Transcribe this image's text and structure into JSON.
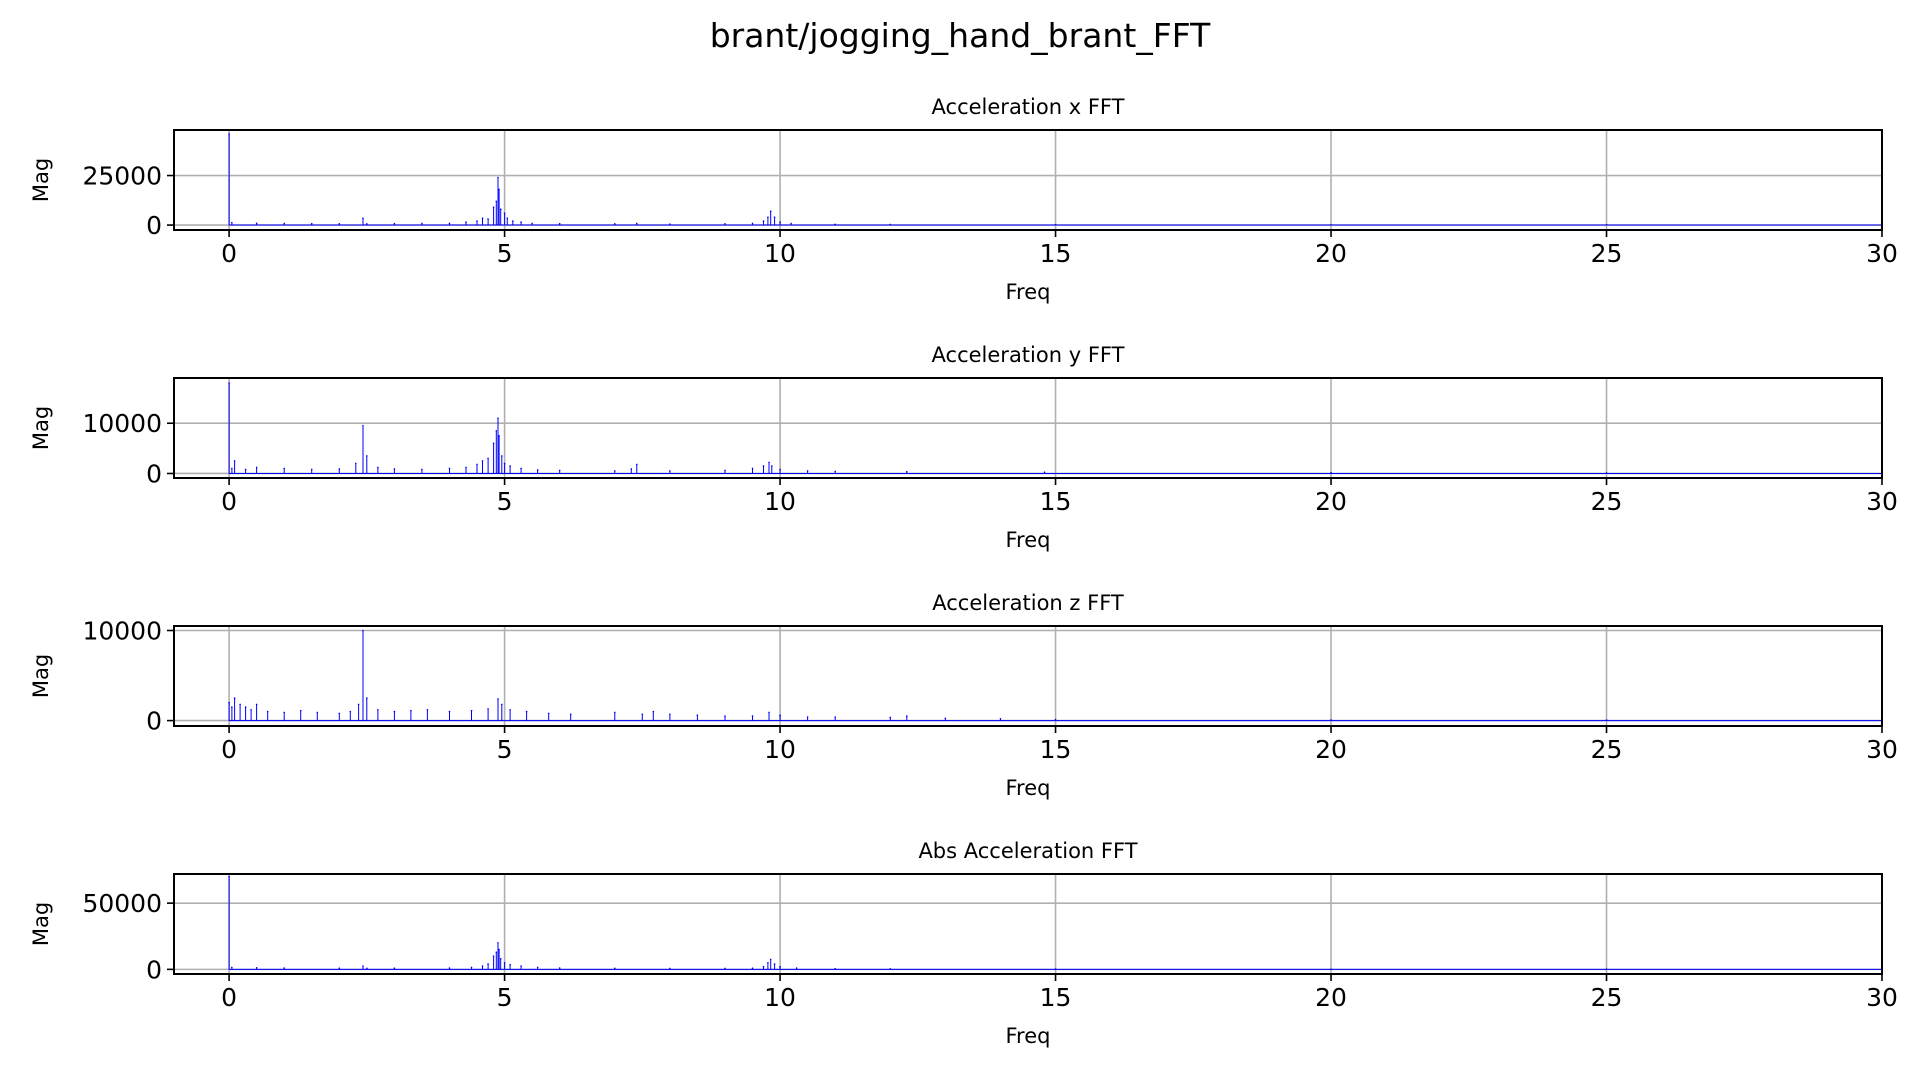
{
  "figure": {
    "title": "brant/jogging_hand_brant_FFT"
  },
  "style": {
    "line_color": "#0000ff",
    "grid_color": "#b0b0b0",
    "axis_color": "#000000",
    "background": "#ffffff"
  },
  "chart_data": [
    {
      "type": "line",
      "title": "Acceleration x FFT",
      "xlabel": "Freq",
      "ylabel": "Mag",
      "xlim": [
        -1,
        30
      ],
      "ylim": [
        -2500,
        48000
      ],
      "xticks": [
        0,
        5,
        10,
        15,
        20,
        25,
        30
      ],
      "yticks": [
        0,
        25000
      ],
      "ytick_labels": [
        "0",
        "25000"
      ],
      "grid": true,
      "series": [
        {
          "color": "#0000ff",
          "x": [
            0,
            0.05,
            0.5,
            1.0,
            1.5,
            2.0,
            2.43,
            2.5,
            3.0,
            3.5,
            4.0,
            4.3,
            4.5,
            4.6,
            4.7,
            4.8,
            4.85,
            4.88,
            4.9,
            4.93,
            5.0,
            5.05,
            5.15,
            5.3,
            5.5,
            6.0,
            7.0,
            7.4,
            8.0,
            9.0,
            9.5,
            9.7,
            9.78,
            9.83,
            9.9,
            10.0,
            10.2,
            11.0,
            12.0,
            15.0,
            20.0,
            25.0,
            30.0
          ],
          "y": [
            46000,
            1200,
            900,
            800,
            700,
            650,
            3500,
            600,
            700,
            800,
            900,
            1500,
            2000,
            3500,
            3000,
            9000,
            12000,
            24000,
            18000,
            8000,
            6000,
            3500,
            2000,
            1500,
            900,
            700,
            600,
            800,
            500,
            600,
            800,
            2000,
            4000,
            7000,
            4000,
            1500,
            800,
            400,
            300,
            200,
            150,
            120,
            100
          ]
        }
      ]
    },
    {
      "type": "line",
      "title": "Acceleration y FFT",
      "xlabel": "Freq",
      "ylabel": "Mag",
      "xlim": [
        -1,
        30
      ],
      "ylim": [
        -900,
        19000
      ],
      "xticks": [
        0,
        5,
        10,
        15,
        20,
        25,
        30
      ],
      "yticks": [
        0,
        10000
      ],
      "ytick_labels": [
        "0",
        "10000"
      ],
      "grid": true,
      "series": [
        {
          "color": "#0000ff",
          "x": [
            0,
            0.05,
            0.1,
            0.3,
            0.5,
            1.0,
            1.5,
            2.0,
            2.3,
            2.43,
            2.5,
            2.7,
            3.0,
            3.5,
            4.0,
            4.3,
            4.5,
            4.6,
            4.7,
            4.8,
            4.85,
            4.88,
            4.9,
            4.95,
            5.0,
            5.1,
            5.3,
            5.6,
            6.0,
            7.0,
            7.3,
            7.4,
            8.0,
            9.0,
            9.5,
            9.7,
            9.8,
            9.85,
            10.0,
            10.5,
            11.0,
            12.3,
            14.8,
            20.0,
            25.0,
            30.0
          ],
          "y": [
            18000,
            1000,
            2500,
            800,
            1200,
            1000,
            800,
            900,
            2000,
            9500,
            3500,
            1200,
            900,
            800,
            1000,
            1200,
            1800,
            2500,
            3000,
            6000,
            8500,
            11000,
            7500,
            3500,
            2000,
            1500,
            1000,
            700,
            600,
            500,
            900,
            1800,
            500,
            600,
            1000,
            1500,
            2200,
            1500,
            800,
            500,
            400,
            350,
            250,
            150,
            100,
            80
          ]
        }
      ]
    },
    {
      "type": "line",
      "title": "Acceleration z FFT",
      "xlabel": "Freq",
      "ylabel": "Mag",
      "xlim": [
        -1,
        30
      ],
      "ylim": [
        -600,
        10500
      ],
      "xticks": [
        0,
        5,
        10,
        15,
        20,
        25,
        30
      ],
      "yticks": [
        0,
        10000
      ],
      "ytick_labels": [
        "0",
        "10000"
      ],
      "grid": true,
      "series": [
        {
          "color": "#0000ff",
          "x": [
            0,
            0.05,
            0.1,
            0.2,
            0.3,
            0.4,
            0.5,
            0.7,
            1.0,
            1.3,
            1.6,
            2.0,
            2.2,
            2.35,
            2.43,
            2.5,
            2.7,
            3.0,
            3.3,
            3.6,
            4.0,
            4.4,
            4.7,
            4.88,
            4.95,
            5.1,
            5.4,
            5.8,
            6.2,
            7.0,
            7.5,
            7.7,
            8.0,
            8.5,
            9.0,
            9.5,
            9.8,
            10.0,
            10.5,
            11.0,
            12.0,
            12.3,
            13.0,
            14.0,
            15.0,
            20.0,
            25.0,
            30.0
          ],
          "y": [
            2000,
            1500,
            2500,
            1800,
            1500,
            1200,
            1800,
            1000,
            900,
            1100,
            900,
            800,
            1000,
            1800,
            10000,
            2500,
            1200,
            1000,
            1100,
            1200,
            1000,
            1100,
            1300,
            2400,
            1800,
            1200,
            1000,
            800,
            700,
            900,
            700,
            1000,
            700,
            600,
            500,
            500,
            900,
            600,
            400,
            400,
            350,
            500,
            250,
            200,
            120,
            80,
            60,
            40
          ]
        }
      ]
    },
    {
      "type": "line",
      "title": "Abs Acceleration FFT",
      "xlabel": "Freq",
      "ylabel": "Mag",
      "xlim": [
        -1,
        30
      ],
      "ylim": [
        -3500,
        72000
      ],
      "xticks": [
        0,
        5,
        10,
        15,
        20,
        25,
        30
      ],
      "yticks": [
        0,
        50000
      ],
      "ytick_labels": [
        "0",
        "50000"
      ],
      "grid": true,
      "series": [
        {
          "color": "#0000ff",
          "x": [
            0,
            0.05,
            0.5,
            1.0,
            2.0,
            2.43,
            2.5,
            3.0,
            4.0,
            4.4,
            4.6,
            4.7,
            4.8,
            4.85,
            4.88,
            4.9,
            4.93,
            5.0,
            5.1,
            5.3,
            5.6,
            6.0,
            7.0,
            8.0,
            9.0,
            9.5,
            9.7,
            9.78,
            9.83,
            9.9,
            10.0,
            10.3,
            11.0,
            12.0,
            15.0,
            20.0,
            25.0,
            30.0
          ],
          "y": [
            70000,
            1500,
            1200,
            1000,
            900,
            2500,
            800,
            900,
            1000,
            1500,
            2500,
            4000,
            10000,
            13000,
            20000,
            15000,
            8000,
            5000,
            3500,
            2500,
            1500,
            1000,
            800,
            700,
            700,
            900,
            2000,
            5000,
            7500,
            4000,
            2000,
            1000,
            500,
            400,
            250,
            180,
            150,
            120
          ]
        }
      ]
    }
  ]
}
